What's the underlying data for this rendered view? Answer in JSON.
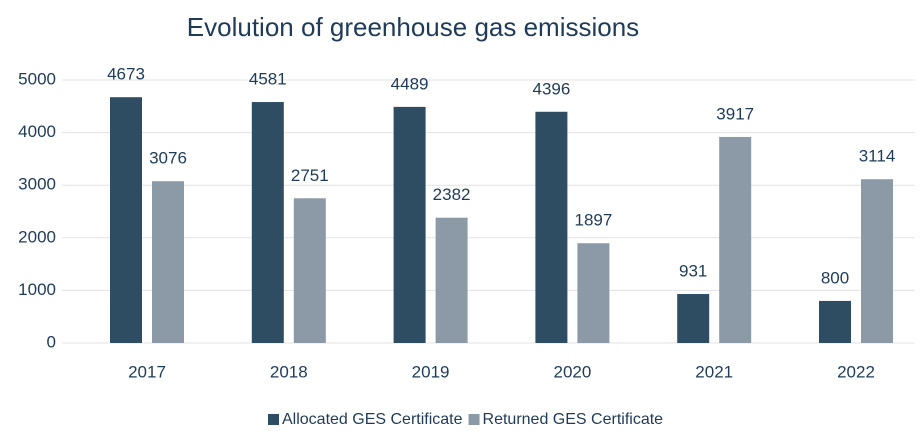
{
  "chart_data": {
    "type": "bar",
    "title": "Evolution of greenhouse gas emissions",
    "categories": [
      "2017",
      "2018",
      "2019",
      "2020",
      "2021",
      "2022"
    ],
    "series": [
      {
        "name": "Allocated GES Certificate",
        "color": "#2e4d63",
        "values": [
          4673,
          4581,
          4489,
          4396,
          931,
          800
        ]
      },
      {
        "name": "Returned GES Certificate",
        "color": "#8c99a6",
        "values": [
          3076,
          2751,
          2382,
          1897,
          3917,
          3114
        ]
      }
    ],
    "ylim": [
      0,
      5000
    ],
    "yticks": [
      0,
      1000,
      2000,
      3000,
      4000,
      5000
    ],
    "grid": true,
    "legend": "bottom"
  }
}
